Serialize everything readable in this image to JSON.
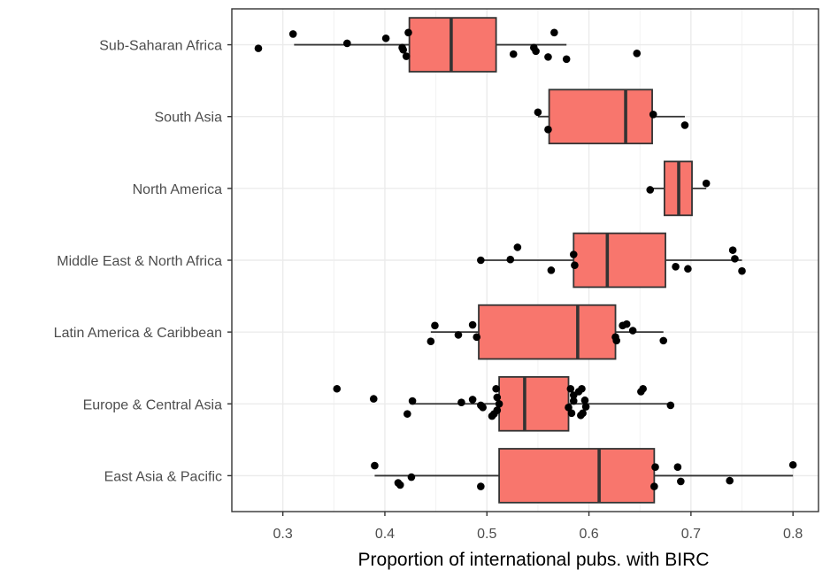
{
  "chart_data": {
    "type": "boxplot",
    "orientation": "horizontal",
    "xlabel": "Proportion of international pubs. with BIRC",
    "ylabel": "",
    "xlim": [
      0.25,
      0.825
    ],
    "xticks": [
      0.3,
      0.4,
      0.5,
      0.6,
      0.7,
      0.8
    ],
    "xtick_labels": [
      "0.3",
      "0.4",
      "0.5",
      "0.6",
      "0.7",
      "0.8"
    ],
    "grid": true,
    "box_color": "#F8766D",
    "categories": [
      "East Asia & Pacific",
      "Europe & Central Asia",
      "Latin America & Caribbean",
      "Middle East & North Africa",
      "North America",
      "South Asia",
      "Sub-Saharan Africa"
    ],
    "series": [
      {
        "category": "East Asia & Pacific",
        "min": 0.39,
        "q1": 0.512,
        "median": 0.61,
        "q3": 0.664,
        "max": 0.8,
        "points": [
          [
            0.39,
            0.14
          ],
          [
            0.426,
            -0.02
          ],
          [
            0.413,
            -0.1
          ],
          [
            0.415,
            -0.13
          ],
          [
            0.494,
            -0.15
          ],
          [
            0.665,
            0.12
          ],
          [
            0.687,
            0.12
          ],
          [
            0.69,
            -0.08
          ],
          [
            0.664,
            -0.15
          ],
          [
            0.738,
            -0.07
          ],
          [
            0.8,
            0.15
          ]
        ]
      },
      {
        "category": "Europe & Central Asia",
        "min": 0.427,
        "q1": 0.512,
        "median": 0.537,
        "q3": 0.58,
        "max": 0.68,
        "points": [
          [
            0.353,
            0.21
          ],
          [
            0.389,
            0.07
          ],
          [
            0.427,
            0.04
          ],
          [
            0.422,
            -0.14
          ],
          [
            0.475,
            0.02
          ],
          [
            0.486,
            0.06
          ],
          [
            0.494,
            -0.02
          ],
          [
            0.496,
            -0.05
          ],
          [
            0.509,
            0.21
          ],
          [
            0.51,
            0.09
          ],
          [
            0.507,
            -0.14
          ],
          [
            0.505,
            -0.17
          ],
          [
            0.512,
            0.0
          ],
          [
            0.51,
            -0.09
          ],
          [
            0.582,
            0.21
          ],
          [
            0.59,
            0.17
          ],
          [
            0.593,
            0.21
          ],
          [
            0.585,
            0.12
          ],
          [
            0.585,
            0.04
          ],
          [
            0.58,
            -0.05
          ],
          [
            0.596,
            0.05
          ],
          [
            0.597,
            -0.04
          ],
          [
            0.594,
            -0.13
          ],
          [
            0.583,
            -0.13
          ],
          [
            0.592,
            -0.16
          ],
          [
            0.651,
            0.17
          ],
          [
            0.653,
            0.21
          ],
          [
            0.68,
            -0.02
          ]
        ]
      },
      {
        "category": "Latin America & Caribbean",
        "min": 0.445,
        "q1": 0.492,
        "median": 0.589,
        "q3": 0.626,
        "max": 0.673,
        "points": [
          [
            0.449,
            0.09
          ],
          [
            0.445,
            -0.13
          ],
          [
            0.472,
            -0.04
          ],
          [
            0.486,
            0.1
          ],
          [
            0.49,
            -0.07
          ],
          [
            0.633,
            0.09
          ],
          [
            0.637,
            0.11
          ],
          [
            0.643,
            0.02
          ],
          [
            0.626,
            -0.07
          ],
          [
            0.627,
            -0.12
          ],
          [
            0.673,
            -0.12
          ]
        ]
      },
      {
        "category": "Middle East & North Africa",
        "min": 0.494,
        "q1": 0.585,
        "median": 0.618,
        "q3": 0.675,
        "max": 0.75,
        "points": [
          [
            0.494,
            -0.0
          ],
          [
            0.53,
            0.18
          ],
          [
            0.523,
            0.01
          ],
          [
            0.563,
            -0.14
          ],
          [
            0.585,
            0.08
          ],
          [
            0.586,
            -0.07
          ],
          [
            0.741,
            0.14
          ],
          [
            0.743,
            0.02
          ],
          [
            0.685,
            -0.09
          ],
          [
            0.697,
            -0.12
          ],
          [
            0.75,
            -0.15
          ]
        ]
      },
      {
        "category": "North America",
        "min": 0.66,
        "q1": 0.674,
        "median": 0.688,
        "q3": 0.701,
        "max": 0.715,
        "points": [
          [
            0.66,
            -0.02
          ],
          [
            0.715,
            0.07
          ]
        ]
      },
      {
        "category": "South Asia",
        "min": 0.55,
        "q1": 0.561,
        "median": 0.636,
        "q3": 0.662,
        "max": 0.694,
        "points": [
          [
            0.55,
            0.06
          ],
          [
            0.56,
            -0.18
          ],
          [
            0.663,
            0.03
          ],
          [
            0.694,
            -0.12
          ]
        ]
      },
      {
        "category": "Sub-Saharan Africa",
        "min": 0.311,
        "q1": 0.424,
        "median": 0.465,
        "q3": 0.509,
        "max": 0.578,
        "points": [
          [
            0.276,
            -0.05
          ],
          [
            0.31,
            0.15
          ],
          [
            0.363,
            0.02
          ],
          [
            0.401,
            0.09
          ],
          [
            0.423,
            0.17
          ],
          [
            0.417,
            -0.04
          ],
          [
            0.418,
            -0.07
          ],
          [
            0.421,
            -0.16
          ],
          [
            0.566,
            0.17
          ],
          [
            0.546,
            -0.04
          ],
          [
            0.548,
            -0.09
          ],
          [
            0.526,
            -0.13
          ],
          [
            0.56,
            -0.17
          ],
          [
            0.578,
            -0.2
          ],
          [
            0.647,
            -0.12
          ]
        ]
      }
    ]
  }
}
